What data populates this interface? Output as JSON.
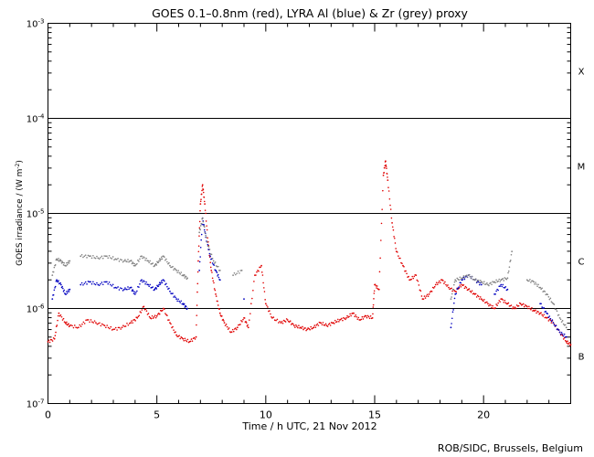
{
  "chart_data": {
    "type": "scatter",
    "title": "GOES 0.1–0.8nm (red), LYRA Al (blue) & Zr (grey) proxy",
    "xlabel": "Time / h UTC, 21 Nov 2012",
    "ylabel_text": "GOES irradiance / (W m",
    "ylabel_sup": "-2",
    "ylabel_close": ")",
    "xlim": [
      0,
      24
    ],
    "ylim_log10": [
      -7,
      -3
    ],
    "x_ticks": [
      {
        "value": 0,
        "label": "0"
      },
      {
        "value": 5,
        "label": "5"
      },
      {
        "value": 10,
        "label": "10"
      },
      {
        "value": 15,
        "label": "15"
      },
      {
        "value": 20,
        "label": "20"
      }
    ],
    "y_ticks": [
      {
        "exp": -3,
        "base": "10",
        "sup": "-3"
      },
      {
        "exp": -4,
        "base": "10",
        "sup": "-4"
      },
      {
        "exp": -5,
        "base": "10",
        "sup": "-5"
      },
      {
        "exp": -6,
        "base": "10",
        "sup": "-6"
      },
      {
        "exp": -7,
        "base": "10",
        "sup": "-7"
      }
    ],
    "flare_class_lines": [
      -4,
      -5,
      -6
    ],
    "flare_classes": [
      {
        "label": "X",
        "exp": -3.5
      },
      {
        "label": "M",
        "exp": -4.5
      },
      {
        "label": "C",
        "exp": -5.5
      },
      {
        "label": "B",
        "exp": -6.5
      }
    ],
    "series": [
      {
        "name": "GOES 0.1-0.8nm",
        "color": "#e00000",
        "points": [
          [
            0.0,
            -6.35
          ],
          [
            0.3,
            -6.32
          ],
          [
            0.5,
            -6.05
          ],
          [
            0.8,
            -6.15
          ],
          [
            1.0,
            -6.18
          ],
          [
            1.4,
            -6.2
          ],
          [
            1.8,
            -6.12
          ],
          [
            2.2,
            -6.15
          ],
          [
            2.6,
            -6.18
          ],
          [
            3.0,
            -6.22
          ],
          [
            3.4,
            -6.2
          ],
          [
            3.8,
            -6.15
          ],
          [
            4.1,
            -6.1
          ],
          [
            4.4,
            -5.98
          ],
          [
            4.7,
            -6.1
          ],
          [
            5.0,
            -6.08
          ],
          [
            5.3,
            -6.0
          ],
          [
            5.6,
            -6.15
          ],
          [
            5.9,
            -6.28
          ],
          [
            6.2,
            -6.32
          ],
          [
            6.5,
            -6.35
          ],
          [
            6.8,
            -6.3
          ],
          [
            6.9,
            -5.5
          ],
          [
            7.0,
            -4.9
          ],
          [
            7.1,
            -4.7
          ],
          [
            7.2,
            -4.9
          ],
          [
            7.35,
            -5.3
          ],
          [
            7.5,
            -5.6
          ],
          [
            7.7,
            -5.85
          ],
          [
            7.9,
            -6.05
          ],
          [
            8.1,
            -6.15
          ],
          [
            8.4,
            -6.25
          ],
          [
            8.7,
            -6.2
          ],
          [
            9.0,
            -6.1
          ],
          [
            9.2,
            -6.2
          ],
          [
            9.5,
            -5.65
          ],
          [
            9.8,
            -5.55
          ],
          [
            10.0,
            -5.95
          ],
          [
            10.3,
            -6.1
          ],
          [
            10.7,
            -6.15
          ],
          [
            11.0,
            -6.12
          ],
          [
            11.3,
            -6.18
          ],
          [
            11.6,
            -6.2
          ],
          [
            11.9,
            -6.22
          ],
          [
            12.2,
            -6.2
          ],
          [
            12.5,
            -6.15
          ],
          [
            12.8,
            -6.18
          ],
          [
            13.1,
            -6.15
          ],
          [
            13.4,
            -6.12
          ],
          [
            13.7,
            -6.1
          ],
          [
            14.0,
            -6.05
          ],
          [
            14.3,
            -6.12
          ],
          [
            14.6,
            -6.08
          ],
          [
            14.9,
            -6.1
          ],
          [
            15.0,
            -5.75
          ],
          [
            15.2,
            -5.8
          ],
          [
            15.4,
            -4.6
          ],
          [
            15.5,
            -4.45
          ],
          [
            15.6,
            -4.65
          ],
          [
            15.8,
            -5.1
          ],
          [
            16.0,
            -5.4
          ],
          [
            16.3,
            -5.55
          ],
          [
            16.6,
            -5.7
          ],
          [
            16.9,
            -5.65
          ],
          [
            17.2,
            -5.9
          ],
          [
            17.5,
            -5.85
          ],
          [
            17.8,
            -5.75
          ],
          [
            18.1,
            -5.7
          ],
          [
            18.4,
            -5.78
          ],
          [
            18.7,
            -5.82
          ],
          [
            19.0,
            -5.75
          ],
          [
            19.3,
            -5.8
          ],
          [
            19.6,
            -5.85
          ],
          [
            19.9,
            -5.9
          ],
          [
            20.2,
            -5.95
          ],
          [
            20.5,
            -6.0
          ],
          [
            20.8,
            -5.9
          ],
          [
            21.1,
            -5.95
          ],
          [
            21.4,
            -6.0
          ],
          [
            21.7,
            -5.95
          ],
          [
            22.0,
            -5.98
          ],
          [
            22.3,
            -6.02
          ],
          [
            22.6,
            -6.05
          ],
          [
            22.9,
            -6.1
          ],
          [
            23.2,
            -6.15
          ],
          [
            23.5,
            -6.25
          ],
          [
            23.8,
            -6.35
          ],
          [
            24.0,
            -6.38
          ]
        ]
      },
      {
        "name": "LYRA Al proxy",
        "color": "#0000c0",
        "points": [
          [
            0.2,
            -5.9
          ],
          [
            0.4,
            -5.7
          ],
          [
            0.6,
            -5.75
          ],
          [
            0.8,
            -5.85
          ],
          [
            1.0,
            -5.8
          ],
          [
            1.5,
            -5.75
          ],
          [
            1.9,
            -5.72
          ],
          [
            2.3,
            -5.75
          ],
          [
            2.7,
            -5.72
          ],
          [
            3.1,
            -5.78
          ],
          [
            3.5,
            -5.8
          ],
          [
            3.8,
            -5.78
          ],
          [
            4.0,
            -5.85
          ],
          [
            4.3,
            -5.7
          ],
          [
            4.6,
            -5.75
          ],
          [
            4.9,
            -5.8
          ],
          [
            5.1,
            -5.75
          ],
          [
            5.3,
            -5.7
          ],
          [
            5.6,
            -5.82
          ],
          [
            5.9,
            -5.9
          ],
          [
            6.2,
            -5.95
          ],
          [
            6.4,
            -6.0
          ],
          [
            6.95,
            -5.6
          ],
          [
            7.1,
            -5.05
          ],
          [
            7.25,
            -5.25
          ],
          [
            7.45,
            -5.45
          ],
          [
            7.7,
            -5.6
          ],
          [
            7.9,
            -5.7
          ],
          [
            9.0,
            -5.9
          ],
          [
            18.5,
            -6.2
          ],
          [
            18.7,
            -5.85
          ],
          [
            19.0,
            -5.7
          ],
          [
            19.3,
            -5.65
          ],
          [
            19.6,
            -5.7
          ],
          [
            19.9,
            -5.75
          ],
          [
            20.5,
            -5.85
          ],
          [
            20.8,
            -5.75
          ],
          [
            21.1,
            -5.8
          ],
          [
            22.6,
            -5.95
          ],
          [
            22.9,
            -6.05
          ],
          [
            23.2,
            -6.15
          ],
          [
            23.5,
            -6.25
          ],
          [
            23.8,
            -6.3
          ]
        ]
      },
      {
        "name": "LYRA Zr proxy",
        "color": "#808080",
        "points": [
          [
            0.2,
            -5.65
          ],
          [
            0.4,
            -5.48
          ],
          [
            0.6,
            -5.5
          ],
          [
            0.8,
            -5.55
          ],
          [
            1.0,
            -5.5
          ],
          [
            1.5,
            -5.45
          ],
          [
            1.9,
            -5.45
          ],
          [
            2.3,
            -5.47
          ],
          [
            2.7,
            -5.45
          ],
          [
            3.1,
            -5.48
          ],
          [
            3.5,
            -5.5
          ],
          [
            3.8,
            -5.5
          ],
          [
            4.0,
            -5.55
          ],
          [
            4.3,
            -5.45
          ],
          [
            4.6,
            -5.5
          ],
          [
            4.9,
            -5.55
          ],
          [
            5.1,
            -5.5
          ],
          [
            5.3,
            -5.45
          ],
          [
            5.6,
            -5.55
          ],
          [
            5.9,
            -5.6
          ],
          [
            6.2,
            -5.65
          ],
          [
            6.4,
            -5.68
          ],
          [
            6.95,
            -5.2
          ],
          [
            7.1,
            -5.05
          ],
          [
            7.3,
            -5.3
          ],
          [
            7.6,
            -5.5
          ],
          [
            7.9,
            -5.6
          ],
          [
            8.5,
            -5.65
          ],
          [
            8.9,
            -5.6
          ],
          [
            18.5,
            -5.9
          ],
          [
            18.7,
            -5.7
          ],
          [
            19.0,
            -5.68
          ],
          [
            19.3,
            -5.65
          ],
          [
            19.6,
            -5.7
          ],
          [
            19.9,
            -5.72
          ],
          [
            20.2,
            -5.75
          ],
          [
            20.5,
            -5.72
          ],
          [
            20.8,
            -5.7
          ],
          [
            21.1,
            -5.68
          ],
          [
            21.3,
            -5.4
          ],
          [
            22.0,
            -5.7
          ],
          [
            22.3,
            -5.72
          ],
          [
            22.6,
            -5.78
          ],
          [
            22.9,
            -5.85
          ],
          [
            23.2,
            -5.95
          ],
          [
            23.5,
            -6.1
          ],
          [
            23.8,
            -6.2
          ]
        ]
      }
    ]
  },
  "credit": "ROB/SIDC, Brussels, Belgium"
}
